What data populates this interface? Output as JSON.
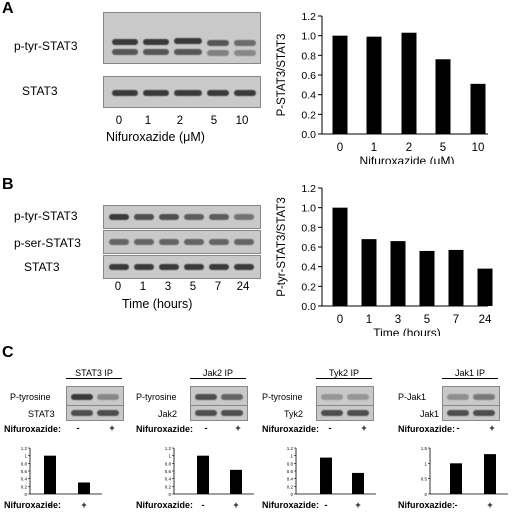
{
  "panels": {
    "a": "A",
    "b": "B",
    "c": "C"
  },
  "panel_a": {
    "blot_rows": [
      "p-tyr-STAT3",
      "STAT3"
    ],
    "lane_labels": [
      "0",
      "1",
      "2",
      "5",
      "10"
    ],
    "xlabel": "Nifuroxazide (μM)"
  },
  "panel_b": {
    "blot_rows": [
      "p-tyr-STAT3",
      "p-ser-STAT3",
      "STAT3"
    ],
    "lane_labels": [
      "0",
      "1",
      "3",
      "5",
      "7",
      "24"
    ],
    "xlabel": "Time (hours)"
  },
  "panel_c": {
    "treatment_label": "Nifuroxazide:",
    "signs": [
      "-",
      "+"
    ],
    "blots": [
      {
        "ip": "STAT3 IP",
        "rows": [
          "P-tyrosine",
          "STAT3"
        ]
      },
      {
        "ip": "Jak2 IP",
        "rows": [
          "P-tyrosine",
          "Jak2"
        ]
      },
      {
        "ip": "Tyk2 IP",
        "rows": [
          "P-tyrosine",
          "Tyk2"
        ]
      },
      {
        "ip": "Jak1 IP",
        "rows": [
          "P-Jak1",
          "Jak1"
        ]
      }
    ]
  },
  "chart_data": [
    {
      "type": "bar",
      "categories": [
        "0",
        "1",
        "2",
        "5",
        "10"
      ],
      "values": [
        1.0,
        0.99,
        1.03,
        0.76,
        0.51
      ],
      "ylabel": "P-STAT3/STAT3",
      "xlabel": "Nifuroxazide (μM)",
      "ylim": [
        0,
        1.2
      ],
      "yticks": [
        "0.0",
        "0.2",
        "0.4",
        "0.6",
        "0.8",
        "1.0",
        "1.2"
      ]
    },
    {
      "type": "bar",
      "categories": [
        "0",
        "1",
        "3",
        "5",
        "7",
        "24"
      ],
      "values": [
        1.0,
        0.68,
        0.66,
        0.56,
        0.57,
        0.38
      ],
      "ylabel": "P-tyr-STAT3/STAT3",
      "xlabel": "Time (hours)",
      "ylim": [
        0,
        1.2
      ],
      "yticks": [
        "0.0",
        "0.2",
        "0.4",
        "0.6",
        "0.8",
        "1.0",
        "1.2"
      ]
    },
    {
      "type": "bar",
      "categories": [
        "-",
        "+"
      ],
      "values": [
        1.0,
        0.3
      ],
      "xlabel": "Nifuroxazide:",
      "ylim": [
        0,
        1.2
      ],
      "yticks": [
        "0",
        "0.2",
        "0.4",
        "0.6",
        "0.8",
        "1",
        "1.2"
      ]
    },
    {
      "type": "bar",
      "categories": [
        "-",
        "+"
      ],
      "values": [
        1.0,
        0.63
      ],
      "xlabel": "Nifuroxazide:",
      "ylim": [
        0,
        1.2
      ],
      "yticks": [
        "0",
        "0.2",
        "0.4",
        "0.6",
        "0.8",
        "1",
        "1.2"
      ]
    },
    {
      "type": "bar",
      "categories": [
        "-",
        "+"
      ],
      "values": [
        0.95,
        0.55
      ],
      "xlabel": "Nifuroxazide:",
      "ylim": [
        0,
        1.2
      ],
      "yticks": [
        "0",
        "0.2",
        "0.4",
        "0.6",
        "0.8",
        "1",
        "1.2"
      ]
    },
    {
      "type": "bar",
      "categories": [
        "-",
        "+"
      ],
      "values": [
        1.0,
        1.3
      ],
      "xlabel": "Nifuroxazide:",
      "ylim": [
        0,
        1.5
      ],
      "yticks": [
        "0",
        "0.5",
        "1",
        "1.5"
      ]
    }
  ]
}
